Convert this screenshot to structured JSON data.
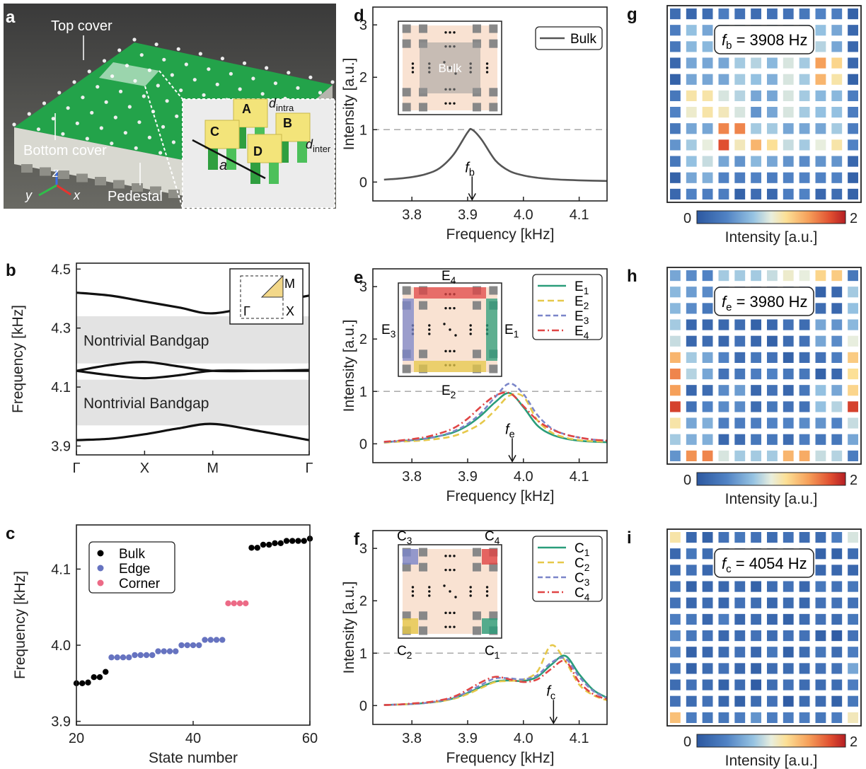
{
  "panel_letters": [
    "a",
    "b",
    "c",
    "d",
    "e",
    "f",
    "g",
    "h",
    "i"
  ],
  "photo": {
    "labels": {
      "top_cover": "Top cover",
      "bottom_cover": "Bottom cover",
      "pedestal": "Pedestal",
      "x": "x",
      "y": "y",
      "z": "z"
    },
    "inset": {
      "blocks": [
        "A",
        "B",
        "C",
        "D"
      ],
      "d_intra": "d",
      "d_intra_sub": "intra",
      "d_inter": "d",
      "d_inter_sub": "inter",
      "a": "a"
    }
  },
  "colors": {
    "e1": "#2a9d7a",
    "e2": "#e6c84a",
    "e3": "#7b86c9",
    "e4": "#e04545",
    "bulk_line": "#555555",
    "bulk_dot": "#000000",
    "edge_dot": "#6673c0",
    "corner_dot": "#ec6a86",
    "gap": "#e3e3e3"
  },
  "chart_data": [
    {
      "id": "b",
      "type": "line",
      "ylabel": "Frequency [kHz]",
      "xticks": [
        "Γ",
        "X",
        "M",
        "Γ"
      ],
      "xtick_pos": [
        0,
        1,
        2,
        3.414
      ],
      "yticks": [
        "3.9",
        "4.1",
        "4.3",
        "4.5"
      ],
      "ylim": [
        3.87,
        4.52
      ],
      "k": [
        0,
        0.5,
        1,
        1.5,
        2,
        2.7,
        3.414
      ],
      "bands": [
        [
          4.42,
          4.41,
          4.39,
          4.37,
          4.35,
          4.38,
          4.41
        ],
        [
          4.155,
          4.175,
          4.185,
          4.17,
          4.155,
          4.155,
          4.158
        ],
        [
          4.155,
          4.14,
          4.13,
          4.14,
          4.155,
          4.155,
          4.155
        ],
        [
          3.92,
          3.925,
          3.94,
          3.96,
          3.975,
          3.95,
          3.92
        ]
      ],
      "gaps": [
        {
          "range": [
            4.18,
            4.34
          ],
          "label": "Nontrivial Bandgap"
        },
        {
          "range": [
            3.97,
            4.125
          ],
          "label": "Nontrivial Bandgap"
        }
      ],
      "bz_labels": {
        "gamma": "Γ",
        "x": "X",
        "m": "M"
      }
    },
    {
      "id": "c",
      "type": "scatter",
      "xlabel": "State number",
      "ylabel": "Frequency [kHz]",
      "xlim": [
        20,
        60
      ],
      "ylim": [
        3.9,
        4.15
      ],
      "xticks": [
        "20",
        "40",
        "60"
      ],
      "yticks": [
        "3.9",
        "4.0",
        "4.1"
      ],
      "legend": "top-left",
      "series": [
        {
          "name": "Bulk",
          "x": [
            20,
            21,
            22,
            23,
            24,
            25,
            50,
            51,
            52,
            53,
            54,
            55,
            56,
            57,
            58,
            59,
            60
          ],
          "y": [
            3.95,
            3.95,
            3.951,
            3.958,
            3.958,
            3.965,
            4.128,
            4.128,
            4.132,
            4.132,
            4.134,
            4.134,
            4.137,
            4.137,
            4.137,
            4.137,
            4.14
          ]
        },
        {
          "name": "Edge",
          "x": [
            26,
            27,
            28,
            29,
            30,
            31,
            32,
            33,
            34,
            35,
            36,
            37,
            38,
            39,
            40,
            41,
            42,
            43,
            44,
            45
          ],
          "y": [
            3.984,
            3.984,
            3.984,
            3.984,
            3.987,
            3.987,
            3.987,
            3.987,
            3.992,
            3.992,
            3.992,
            3.992,
            4.0,
            4.0,
            4.0,
            4.0,
            4.007,
            4.007,
            4.007,
            4.007
          ]
        },
        {
          "name": "Corner",
          "x": [
            46,
            47,
            48,
            49
          ],
          "y": [
            4.055,
            4.055,
            4.055,
            4.055
          ]
        }
      ]
    },
    {
      "id": "d",
      "type": "line",
      "xlabel": "Frequency [kHz]",
      "ylabel": "Intensity [a.u.]",
      "xlim": [
        3.73,
        4.15
      ],
      "ylim": [
        -0.36,
        3.34
      ],
      "xticks": [
        "3.8",
        "3.9",
        "4.0",
        "4.1"
      ],
      "yticks": [
        "0",
        "1",
        "2",
        "3"
      ],
      "reference_line": 1,
      "legend": "top-right",
      "marker": {
        "label": "f",
        "sub": "b",
        "x": 3.908
      },
      "inset_label": "Bulk",
      "x": [
        3.75,
        3.775,
        3.8,
        3.825,
        3.85,
        3.875,
        3.9,
        3.908,
        3.925,
        3.95,
        3.975,
        4.0,
        4.025,
        4.05,
        4.075,
        4.1,
        4.125,
        4.15
      ],
      "series": [
        {
          "name": "Bulk",
          "sub": "",
          "y": [
            0.047,
            0.065,
            0.095,
            0.151,
            0.267,
            0.529,
            0.95,
            1.0,
            0.81,
            0.41,
            0.21,
            0.126,
            0.082,
            0.057,
            0.042,
            0.033,
            0.026,
            0.02
          ]
        }
      ]
    },
    {
      "id": "e",
      "type": "line",
      "xlabel": "Frequency [kHz]",
      "ylabel": "Intensity [a.u.]",
      "xlim": [
        3.73,
        4.15
      ],
      "ylim": [
        -0.36,
        3.34
      ],
      "xticks": [
        "3.8",
        "3.9",
        "4.0",
        "4.1"
      ],
      "yticks": [
        "0",
        "1",
        "2",
        "3"
      ],
      "reference_line": 1,
      "legend": "top-right",
      "marker": {
        "label": "f",
        "sub": "e",
        "x": 3.98
      },
      "x": [
        3.75,
        3.775,
        3.8,
        3.825,
        3.85,
        3.875,
        3.9,
        3.925,
        3.95,
        3.975,
        4.0,
        4.025,
        4.05,
        4.075,
        4.1,
        4.125,
        4.15
      ],
      "series": [
        {
          "name": "E",
          "sub": "1",
          "y": [
            0.03,
            0.05,
            0.07,
            0.1,
            0.15,
            0.22,
            0.35,
            0.55,
            0.8,
            0.97,
            0.7,
            0.35,
            0.18,
            0.1,
            0.06,
            0.04,
            0.03
          ]
        },
        {
          "name": "E",
          "sub": "2",
          "y": [
            0.02,
            0.04,
            0.05,
            0.07,
            0.1,
            0.15,
            0.25,
            0.4,
            0.65,
            0.92,
            0.9,
            0.45,
            0.22,
            0.12,
            0.07,
            0.05,
            0.04
          ]
        },
        {
          "name": "E",
          "sub": "3",
          "y": [
            0.03,
            0.05,
            0.07,
            0.1,
            0.15,
            0.24,
            0.38,
            0.6,
            0.9,
            1.15,
            0.95,
            0.55,
            0.3,
            0.18,
            0.12,
            0.08,
            0.06
          ]
        },
        {
          "name": "E",
          "sub": "4",
          "y": [
            0.04,
            0.06,
            0.09,
            0.13,
            0.2,
            0.3,
            0.48,
            0.72,
            0.92,
            0.97,
            0.72,
            0.45,
            0.28,
            0.18,
            0.12,
            0.08,
            0.06
          ]
        }
      ]
    },
    {
      "id": "f",
      "type": "line",
      "xlabel": "Frequency [kHz]",
      "ylabel": "Intensity [a.u.]",
      "xlim": [
        3.73,
        4.15
      ],
      "ylim": [
        -0.36,
        3.34
      ],
      "xticks": [
        "3.8",
        "3.9",
        "4.0",
        "4.1"
      ],
      "yticks": [
        "0",
        "1",
        "2",
        "3"
      ],
      "reference_line": 1,
      "legend": "top-right",
      "marker": {
        "label": "f",
        "sub": "c",
        "x": 4.054
      },
      "x": [
        3.75,
        3.775,
        3.8,
        3.825,
        3.85,
        3.875,
        3.9,
        3.925,
        3.95,
        3.975,
        4.0,
        4.025,
        4.05,
        4.075,
        4.1,
        4.125,
        4.15
      ],
      "series": [
        {
          "name": "C",
          "sub": "1",
          "y": [
            0.01,
            0.02,
            0.03,
            0.05,
            0.08,
            0.14,
            0.24,
            0.36,
            0.46,
            0.48,
            0.47,
            0.55,
            0.78,
            0.95,
            0.6,
            0.3,
            0.15
          ]
        },
        {
          "name": "C",
          "sub": "2",
          "y": [
            0.01,
            0.02,
            0.03,
            0.05,
            0.08,
            0.13,
            0.22,
            0.34,
            0.45,
            0.47,
            0.5,
            0.65,
            1.15,
            0.85,
            0.4,
            0.2,
            0.1
          ]
        },
        {
          "name": "C",
          "sub": "3",
          "y": [
            0.01,
            0.02,
            0.03,
            0.05,
            0.09,
            0.15,
            0.26,
            0.4,
            0.52,
            0.52,
            0.5,
            0.58,
            0.82,
            0.9,
            0.55,
            0.28,
            0.14
          ]
        },
        {
          "name": "C",
          "sub": "4",
          "y": [
            0.01,
            0.02,
            0.04,
            0.06,
            0.1,
            0.17,
            0.3,
            0.45,
            0.55,
            0.5,
            0.45,
            0.5,
            0.7,
            0.85,
            0.45,
            0.22,
            0.12
          ]
        }
      ]
    },
    {
      "id": "g",
      "type": "heatmap",
      "title": "f",
      "title_sub": "b",
      "title_value": " = 3908 Hz",
      "colorbar": {
        "min": "0",
        "max": "2",
        "label": "Intensity [a.u.]"
      },
      "zlim": [
        0,
        2
      ],
      "values": [
        [
          0.2,
          0.15,
          0.2,
          0.35,
          0.25,
          0.2,
          0.25,
          0.25,
          0.3,
          0.4,
          0.35,
          0.1
        ],
        [
          0.35,
          0.75,
          0.6,
          0.7,
          0.7,
          0.7,
          0.7,
          0.7,
          0.7,
          0.75,
          0.6,
          0.15
        ],
        [
          0.3,
          0.7,
          0.7,
          0.7,
          0.7,
          0.7,
          0.7,
          0.7,
          0.7,
          0.85,
          0.6,
          0.15
        ],
        [
          0.15,
          0.6,
          0.6,
          0.6,
          0.8,
          0.85,
          0.7,
          0.95,
          0.8,
          1.5,
          1.25,
          0.15
        ],
        [
          0.1,
          0.6,
          0.6,
          0.6,
          0.8,
          0.75,
          0.65,
          0.95,
          0.8,
          1.4,
          1.15,
          0.1
        ],
        [
          0.3,
          1.15,
          1.15,
          0.95,
          0.85,
          0.6,
          0.6,
          0.95,
          0.8,
          0.7,
          0.7,
          0.35
        ],
        [
          0.4,
          1.05,
          1.15,
          1.1,
          0.95,
          0.5,
          0.6,
          0.95,
          0.8,
          0.75,
          0.75,
          0.35
        ],
        [
          0.3,
          0.6,
          0.6,
          1.6,
          1.6,
          0.8,
          0.8,
          0.6,
          0.6,
          0.6,
          0.8,
          0.35
        ],
        [
          0.5,
          0.8,
          1.0,
          1.8,
          1.1,
          1.4,
          1.2,
          0.9,
          0.8,
          1.0,
          1.15,
          0.4
        ],
        [
          0.3,
          0.75,
          0.9,
          0.6,
          0.5,
          0.7,
          0.6,
          0.5,
          0.45,
          0.5,
          0.5,
          0.15
        ],
        [
          0.1,
          0.6,
          0.65,
          0.4,
          0.35,
          0.4,
          0.35,
          0.4,
          0.4,
          0.4,
          0.4,
          0.1
        ],
        [
          0.15,
          0.4,
          0.35,
          0.35,
          0.1,
          0.2,
          0.15,
          0.35,
          0.4,
          0.15,
          0.2,
          0.1
        ]
      ]
    },
    {
      "id": "h",
      "type": "heatmap",
      "title": "f",
      "title_sub": "e",
      "title_value": " = 3980 Hz",
      "colorbar": {
        "min": "0",
        "max": "2",
        "label": "Intensity [a.u.]"
      },
      "zlim": [
        0,
        2
      ],
      "values": [
        [
          0.6,
          0.45,
          0.4,
          0.8,
          0.8,
          0.8,
          0.9,
          1.05,
          1.0,
          1.25,
          1.3,
          0.3
        ],
        [
          0.7,
          0.55,
          0.45,
          0.4,
          0.3,
          0.3,
          0.3,
          0.3,
          0.3,
          0.1,
          0.15,
          0.8
        ],
        [
          0.7,
          0.45,
          0.3,
          0.3,
          0.3,
          0.3,
          0.3,
          0.3,
          0.3,
          0.2,
          0.15,
          0.75
        ],
        [
          0.8,
          0.15,
          0.15,
          0.15,
          0.2,
          0.1,
          0.15,
          0.25,
          0.2,
          0.6,
          0.5,
          0.7
        ],
        [
          0.9,
          0.15,
          0.2,
          0.15,
          0.25,
          0.15,
          0.1,
          0.2,
          0.25,
          0.6,
          0.45,
          1.0
        ],
        [
          1.4,
          0.8,
          0.6,
          0.4,
          0.2,
          0.3,
          0.25,
          0.1,
          0.2,
          0.25,
          0.35,
          1.3
        ],
        [
          1.6,
          0.85,
          0.6,
          0.25,
          0.3,
          0.35,
          0.4,
          0.3,
          0.3,
          0.1,
          0.15,
          1.2
        ],
        [
          1.5,
          0.15,
          0.2,
          0.45,
          0.55,
          0.15,
          0.25,
          0.15,
          0.3,
          0.75,
          0.6,
          1.25
        ],
        [
          1.85,
          0.25,
          0.4,
          0.45,
          0.45,
          0.2,
          0.3,
          0.25,
          0.25,
          0.75,
          0.85,
          1.85
        ],
        [
          1.15,
          0.6,
          0.65,
          0.35,
          0.35,
          0.35,
          0.4,
          0.4,
          0.45,
          0.5,
          0.4,
          0.9
        ],
        [
          0.8,
          0.65,
          0.65,
          0.15,
          0.2,
          0.3,
          0.3,
          0.2,
          0.35,
          0.3,
          0.3,
          0.6
        ],
        [
          0.5,
          1.55,
          1.6,
          0.95,
          0.8,
          0.8,
          0.8,
          1.4,
          1.45,
          0.9,
          0.85,
          0.35
        ]
      ]
    },
    {
      "id": "i",
      "type": "heatmap",
      "title": "f",
      "title_sub": "c",
      "title_value": " = 4054 Hz",
      "colorbar": {
        "min": "0",
        "max": "2",
        "label": "Intensity [a.u.]"
      },
      "zlim": [
        0,
        2
      ],
      "values": [
        [
          1.15,
          0.15,
          0.1,
          0.25,
          0.3,
          0.25,
          0.2,
          0.25,
          0.2,
          0.2,
          0.35,
          0.95
        ],
        [
          0.15,
          0.3,
          0.2,
          0.2,
          0.2,
          0.2,
          0.2,
          0.2,
          0.2,
          0.1,
          0.1,
          0.2
        ],
        [
          0.2,
          0.25,
          0.15,
          0.2,
          0.2,
          0.2,
          0.2,
          0.2,
          0.2,
          0.15,
          0.15,
          0.15
        ],
        [
          0.3,
          0.1,
          0.15,
          0.15,
          0.2,
          0.1,
          0.2,
          0.25,
          0.15,
          0.3,
          0.25,
          0.3
        ],
        [
          0.25,
          0.15,
          0.2,
          0.15,
          0.25,
          0.2,
          0.15,
          0.2,
          0.15,
          0.25,
          0.25,
          0.25
        ],
        [
          0.35,
          0.3,
          0.15,
          0.35,
          0.15,
          0.2,
          0.15,
          0.1,
          0.2,
          0.25,
          0.2,
          0.3
        ],
        [
          0.45,
          0.3,
          0.25,
          0.15,
          0.2,
          0.25,
          0.2,
          0.25,
          0.25,
          0.1,
          0.05,
          0.25
        ],
        [
          0.45,
          0.1,
          0.15,
          0.2,
          0.25,
          0.15,
          0.3,
          0.1,
          0.2,
          0.3,
          0.2,
          0.35
        ],
        [
          0.3,
          0.1,
          0.2,
          0.25,
          0.15,
          0.1,
          0.2,
          0.2,
          0.2,
          0.25,
          0.25,
          0.6
        ],
        [
          0.2,
          0.25,
          0.2,
          0.1,
          0.2,
          0.05,
          0.2,
          0.25,
          0.2,
          0.2,
          0.2,
          0.35
        ],
        [
          0.25,
          0.2,
          0.25,
          0.15,
          0.1,
          0.2,
          0.25,
          0.05,
          0.2,
          0.2,
          0.1,
          0.3
        ],
        [
          1.35,
          0.35,
          0.3,
          0.3,
          0.35,
          0.5,
          0.35,
          0.35,
          0.35,
          0.3,
          0.35,
          1.1
        ]
      ]
    }
  ]
}
